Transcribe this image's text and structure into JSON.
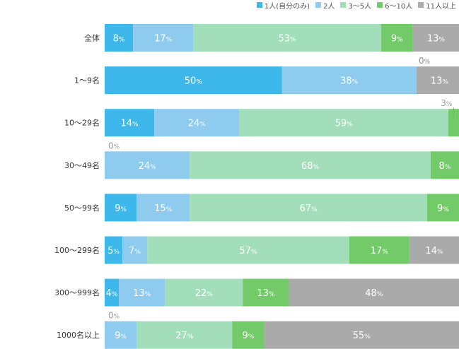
{
  "chart_data": {
    "type": "bar",
    "orientation": "horizontal",
    "stacked": true,
    "percent_sign": "%",
    "categories": [
      "全体",
      "1〜9名",
      "10〜29名",
      "30〜49名",
      "50〜99名",
      "100〜299名",
      "300〜999名",
      "1000名以上"
    ],
    "series": [
      {
        "name": "1人(自分のみ)",
        "color": "#3eb7ea",
        "values": [
          8,
          50,
          14,
          0,
          9,
          5,
          4,
          0
        ]
      },
      {
        "name": "2人",
        "color": "#8fcbef",
        "values": [
          17,
          38,
          24,
          24,
          15,
          7,
          13,
          9
        ]
      },
      {
        "name": "3〜5人",
        "color": "#a3deba",
        "values": [
          53,
          0,
          59,
          68,
          67,
          57,
          22,
          27
        ]
      },
      {
        "name": "6〜10人",
        "color": "#73ca68",
        "values": [
          9,
          0,
          3,
          8,
          9,
          17,
          13,
          9
        ]
      },
      {
        "name": "11人以上",
        "color": "#aaaaaa",
        "values": [
          13,
          13,
          0,
          0,
          0,
          14,
          48,
          55
        ]
      }
    ],
    "legend_position": "top-right",
    "xlim": [
      0,
      100
    ]
  }
}
